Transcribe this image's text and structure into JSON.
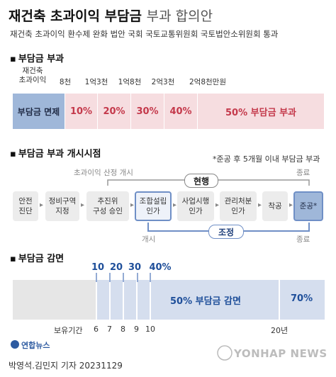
{
  "header": {
    "title_bold": "재건축 초과이익 부담금",
    "title_light": "부과 합의안",
    "subtitle": "재건축 초과이익 환수제 완화 법안 국회 국토교통위원회 국토법안소위원회 통과"
  },
  "section1": {
    "heading": "부담금 부과",
    "ticks": [
      "재건축\n초과이익",
      "8천",
      "1억3천",
      "1억8천",
      "2억3천",
      "2억8천만원"
    ],
    "segments": [
      {
        "label": "부담금 면제",
        "kind": "exempt"
      },
      {
        "label": "10%",
        "kind": "rate"
      },
      {
        "label": "20%",
        "kind": "rate"
      },
      {
        "label": "30%",
        "kind": "rate"
      },
      {
        "label": "40%",
        "kind": "rate"
      },
      {
        "label": "50% 부담금 부과",
        "kind": "rate"
      }
    ]
  },
  "section2": {
    "heading": "부담금 부과 개시시점",
    "note": "*준공 후 5개월 이내 부담금 부과",
    "current_start_label": "초과이익 산정 개시",
    "current_end_label": "종료",
    "current_pill": "현행",
    "adjusted_pill": "조정",
    "adjusted_start_label": "개시",
    "adjusted_end_label": "종료",
    "steps": [
      "안전\n진단",
      "정비구역\n지정",
      "추진위\n구성 승인",
      "조합설립\n인가",
      "사업시행\n인가",
      "관리처분\n인가",
      "착공",
      "준공*"
    ]
  },
  "section3": {
    "heading": "부담금 감면",
    "percents": [
      "10",
      "20",
      "30",
      "40%"
    ],
    "main_label": "50%  부담금 감면",
    "end_label": "70%",
    "years_label": "보유기간",
    "years": [
      "6",
      "7",
      "8",
      "9",
      "10",
      "20년"
    ]
  },
  "footer": {
    "logo_text": "연합뉴스",
    "credit": "박영석.김민지 기자  20231129",
    "watermark": "YONHAP NEWS"
  },
  "colors": {
    "exempt_blue": "#9fb7d9",
    "rate_pink": "#f6dde0",
    "rate_text": "#c4394b",
    "accent_blue": "#1f4f9a"
  }
}
